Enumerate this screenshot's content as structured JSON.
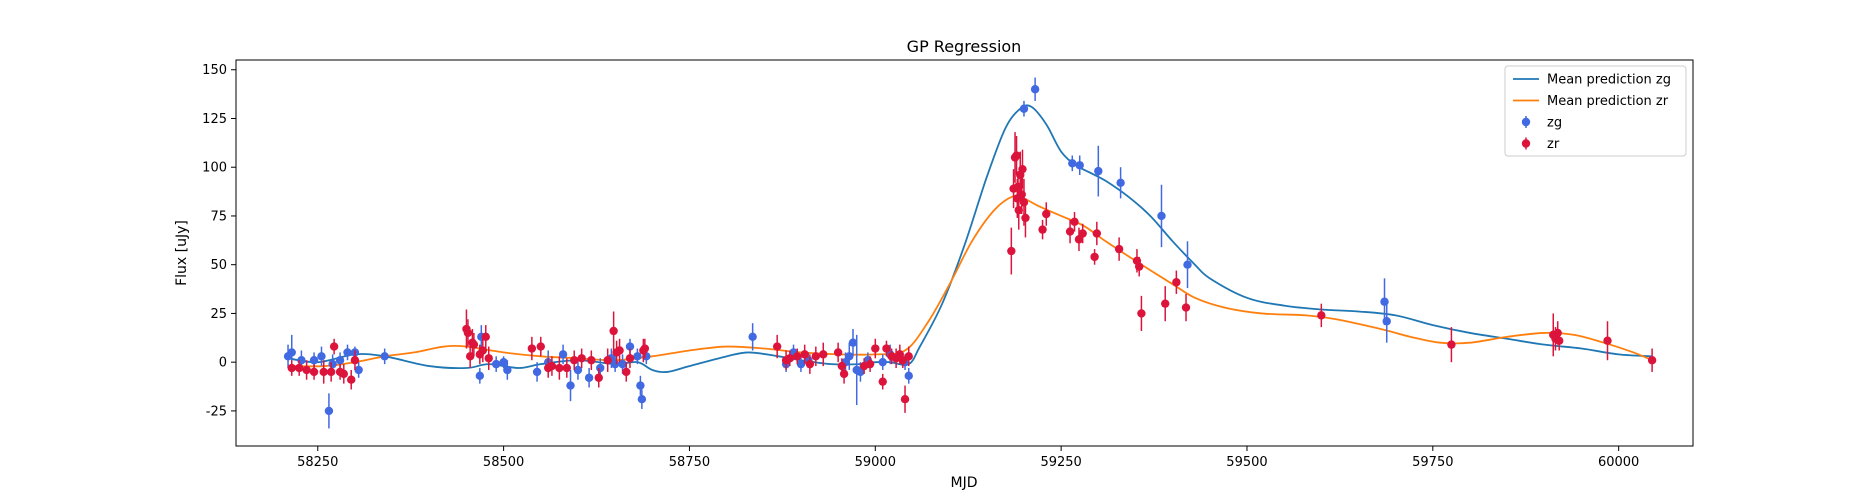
{
  "chart_data": {
    "type": "scatter",
    "title": "GP Regression",
    "xlabel": "MJD",
    "ylabel": "Flux [uJy]",
    "xlim": [
      58140,
      60100
    ],
    "ylim": [
      -43,
      155
    ],
    "xticks": [
      58250,
      58500,
      58750,
      59000,
      59250,
      59500,
      59750,
      60000
    ],
    "yticks": [
      -25,
      0,
      25,
      50,
      75,
      100,
      125,
      150
    ],
    "grid": false,
    "legend_position": "top-right",
    "legend": [
      {
        "label": "Mean prediction zg",
        "kind": "line",
        "series": "zg"
      },
      {
        "label": "Mean prediction zr",
        "kind": "line",
        "series": "zr"
      },
      {
        "label": "zg",
        "kind": "errorbar",
        "series": "zg"
      },
      {
        "label": "zr",
        "kind": "errorbar",
        "series": "zr"
      }
    ],
    "colors": {
      "zg_line": "#1f77b4",
      "zr_line": "#ff7f0e",
      "zg_points": "#4169e1",
      "zr_points": "#dc143c"
    },
    "series": [
      {
        "name": "Mean prediction zg",
        "type": "line",
        "points": [
          [
            58210,
            2
          ],
          [
            58250,
            0
          ],
          [
            58300,
            4
          ],
          [
            58340,
            3
          ],
          [
            58400,
            -2
          ],
          [
            58450,
            -3
          ],
          [
            58480,
            -1
          ],
          [
            58520,
            -3
          ],
          [
            58550,
            -1
          ],
          [
            58600,
            1
          ],
          [
            58650,
            -1
          ],
          [
            58680,
            0
          ],
          [
            58700,
            -4
          ],
          [
            58720,
            -5
          ],
          [
            58750,
            -2
          ],
          [
            58800,
            3
          ],
          [
            58830,
            5
          ],
          [
            58870,
            3
          ],
          [
            58900,
            1
          ],
          [
            58940,
            -1
          ],
          [
            58980,
            -1
          ],
          [
            59000,
            0
          ],
          [
            59020,
            0
          ],
          [
            59045,
            -1
          ],
          [
            59060,
            8
          ],
          [
            59090,
            30
          ],
          [
            59120,
            60
          ],
          [
            59150,
            95
          ],
          [
            59175,
            120
          ],
          [
            59195,
            130
          ],
          [
            59210,
            131
          ],
          [
            59230,
            122
          ],
          [
            59250,
            108
          ],
          [
            59270,
            101
          ],
          [
            59290,
            97
          ],
          [
            59310,
            93
          ],
          [
            59340,
            85
          ],
          [
            59370,
            75
          ],
          [
            59400,
            62
          ],
          [
            59430,
            50
          ],
          [
            59450,
            43
          ],
          [
            59500,
            33
          ],
          [
            59550,
            29
          ],
          [
            59600,
            27
          ],
          [
            59650,
            26
          ],
          [
            59700,
            24
          ],
          [
            59750,
            19
          ],
          [
            59800,
            15
          ],
          [
            59850,
            12
          ],
          [
            59900,
            9
          ],
          [
            59950,
            7
          ],
          [
            60000,
            4
          ],
          [
            60045,
            3
          ]
        ]
      },
      {
        "name": "Mean prediction zr",
        "type": "line",
        "points": [
          [
            58210,
            -2
          ],
          [
            58260,
            -2
          ],
          [
            58300,
            0
          ],
          [
            58340,
            3
          ],
          [
            58380,
            5
          ],
          [
            58420,
            8
          ],
          [
            58450,
            8
          ],
          [
            58500,
            5
          ],
          [
            58550,
            3
          ],
          [
            58600,
            2
          ],
          [
            58650,
            1
          ],
          [
            58700,
            3
          ],
          [
            58750,
            6
          ],
          [
            58800,
            8
          ],
          [
            58850,
            7
          ],
          [
            58900,
            5
          ],
          [
            58950,
            4
          ],
          [
            59000,
            4
          ],
          [
            59040,
            6
          ],
          [
            59070,
            20
          ],
          [
            59100,
            40
          ],
          [
            59130,
            62
          ],
          [
            59160,
            78
          ],
          [
            59185,
            85
          ],
          [
            59200,
            84
          ],
          [
            59220,
            80
          ],
          [
            59250,
            75
          ],
          [
            59280,
            70
          ],
          [
            59310,
            62
          ],
          [
            59350,
            52
          ],
          [
            59400,
            40
          ],
          [
            59430,
            33
          ],
          [
            59470,
            28
          ],
          [
            59520,
            25
          ],
          [
            59580,
            24
          ],
          [
            59620,
            22
          ],
          [
            59680,
            17
          ],
          [
            59720,
            13
          ],
          [
            59760,
            10
          ],
          [
            59800,
            10
          ],
          [
            59850,
            13
          ],
          [
            59900,
            15
          ],
          [
            59940,
            14
          ],
          [
            59980,
            10
          ],
          [
            60020,
            5
          ],
          [
            60045,
            1
          ]
        ]
      },
      {
        "name": "zg",
        "type": "errorbar",
        "points": [
          [
            58210,
            3,
            6
          ],
          [
            58215,
            5,
            9
          ],
          [
            58228,
            1,
            5
          ],
          [
            58245,
            1,
            4
          ],
          [
            58255,
            3,
            5
          ],
          [
            58265,
            -25,
            9
          ],
          [
            58270,
            -1,
            5
          ],
          [
            58280,
            1,
            4
          ],
          [
            58290,
            5,
            4
          ],
          [
            58300,
            5,
            3
          ],
          [
            58305,
            -4,
            4
          ],
          [
            58340,
            3,
            4
          ],
          [
            58470,
            13,
            6
          ],
          [
            58468,
            -7,
            4
          ],
          [
            58490,
            -1,
            4
          ],
          [
            58500,
            0,
            3
          ],
          [
            58505,
            -4,
            5
          ],
          [
            58545,
            -5,
            5
          ],
          [
            58560,
            0,
            6
          ],
          [
            58580,
            4,
            5
          ],
          [
            58590,
            -12,
            8
          ],
          [
            58600,
            -4,
            5
          ],
          [
            58615,
            -8,
            5
          ],
          [
            58630,
            -3,
            5
          ],
          [
            58645,
            2,
            5
          ],
          [
            58650,
            -1,
            4
          ],
          [
            58660,
            -1,
            5
          ],
          [
            58670,
            8,
            4
          ],
          [
            58680,
            3,
            4
          ],
          [
            58684,
            -12,
            5
          ],
          [
            58686,
            -19,
            5
          ],
          [
            58692,
            3,
            4
          ],
          [
            58835,
            13,
            7
          ],
          [
            58880,
            -1,
            4
          ],
          [
            58890,
            5,
            4
          ],
          [
            58900,
            -1,
            4
          ],
          [
            58910,
            1,
            4
          ],
          [
            58960,
            0,
            5
          ],
          [
            58965,
            3,
            7
          ],
          [
            58970,
            10,
            7
          ],
          [
            58975,
            -4,
            18
          ],
          [
            58980,
            -5,
            5
          ],
          [
            58990,
            1,
            4
          ],
          [
            59010,
            0,
            4
          ],
          [
            59020,
            4,
            5
          ],
          [
            59040,
            0,
            4
          ],
          [
            59045,
            -7,
            4
          ],
          [
            59200,
            130,
            4
          ],
          [
            59215,
            140,
            6
          ],
          [
            59265,
            102,
            4
          ],
          [
            59275,
            101,
            5
          ],
          [
            59300,
            98,
            13
          ],
          [
            59330,
            92,
            8
          ],
          [
            59385,
            75,
            16
          ],
          [
            59420,
            50,
            12
          ],
          [
            59685,
            31,
            12
          ],
          [
            59688,
            21,
            11
          ]
        ]
      },
      {
        "name": "zr",
        "type": "errorbar",
        "points": [
          [
            58215,
            -3,
            4
          ],
          [
            58225,
            -3,
            4
          ],
          [
            58235,
            -4,
            5
          ],
          [
            58245,
            -5,
            4
          ],
          [
            58258,
            -5,
            6
          ],
          [
            58268,
            -5,
            5
          ],
          [
            58272,
            8,
            4
          ],
          [
            58280,
            -5,
            4
          ],
          [
            58285,
            -6,
            5
          ],
          [
            58295,
            -9,
            5
          ],
          [
            58300,
            1,
            5
          ],
          [
            58450,
            17,
            10
          ],
          [
            58452,
            15,
            7
          ],
          [
            58455,
            3,
            6
          ],
          [
            58458,
            10,
            7
          ],
          [
            58460,
            9,
            6
          ],
          [
            58468,
            4,
            5
          ],
          [
            58472,
            6,
            6
          ],
          [
            58476,
            13,
            6
          ],
          [
            58480,
            2,
            6
          ],
          [
            58538,
            7,
            6
          ],
          [
            58550,
            8,
            5
          ],
          [
            58560,
            -3,
            5
          ],
          [
            58565,
            -2,
            5
          ],
          [
            58575,
            -3,
            6
          ],
          [
            58585,
            -3,
            5
          ],
          [
            58595,
            1,
            5
          ],
          [
            58605,
            2,
            5
          ],
          [
            58618,
            1,
            5
          ],
          [
            58628,
            -8,
            5
          ],
          [
            58640,
            1,
            6
          ],
          [
            58648,
            16,
            10
          ],
          [
            58652,
            5,
            6
          ],
          [
            58656,
            6,
            6
          ],
          [
            58665,
            -5,
            5
          ],
          [
            58670,
            2,
            5
          ],
          [
            58688,
            6,
            6
          ],
          [
            58690,
            7,
            5
          ],
          [
            58868,
            8,
            6
          ],
          [
            58880,
            1,
            5
          ],
          [
            58885,
            2,
            4
          ],
          [
            58895,
            3,
            4
          ],
          [
            58905,
            4,
            5
          ],
          [
            58912,
            -1,
            5
          ],
          [
            58920,
            3,
            5
          ],
          [
            58930,
            4,
            6
          ],
          [
            58950,
            5,
            5
          ],
          [
            58955,
            -2,
            4
          ],
          [
            58958,
            -6,
            5
          ],
          [
            58985,
            -2,
            4
          ],
          [
            58993,
            -1,
            4
          ],
          [
            59000,
            7,
            5
          ],
          [
            59010,
            -10,
            4
          ],
          [
            59015,
            7,
            4
          ],
          [
            59022,
            3,
            4
          ],
          [
            59028,
            2,
            5
          ],
          [
            59033,
            4,
            5
          ],
          [
            59037,
            1,
            4
          ],
          [
            59040,
            -19,
            7
          ],
          [
            59045,
            3,
            5
          ],
          [
            59183,
            57,
            12
          ],
          [
            59186,
            89,
            10
          ],
          [
            59188,
            105,
            13
          ],
          [
            59190,
            106,
            10
          ],
          [
            59191,
            84,
            10
          ],
          [
            59192,
            90,
            8
          ],
          [
            59193,
            78,
            10
          ],
          [
            59195,
            96,
            12
          ],
          [
            59197,
            86,
            10
          ],
          [
            59198,
            99,
            10
          ],
          [
            59200,
            82,
            12
          ],
          [
            59202,
            74,
            10
          ],
          [
            59225,
            68,
            5
          ],
          [
            59230,
            76,
            6
          ],
          [
            59262,
            67,
            6
          ],
          [
            59268,
            72,
            5
          ],
          [
            59274,
            63,
            6
          ],
          [
            59279,
            66,
            5
          ],
          [
            59295,
            54,
            4
          ],
          [
            59298,
            66,
            6
          ],
          [
            59328,
            58,
            6
          ],
          [
            59352,
            52,
            6
          ],
          [
            59355,
            49,
            5
          ],
          [
            59358,
            25,
            9
          ],
          [
            59390,
            30,
            9
          ],
          [
            59405,
            41,
            6
          ],
          [
            59418,
            28,
            7
          ],
          [
            59600,
            24,
            6
          ],
          [
            59775,
            9,
            9
          ],
          [
            59912,
            14,
            11
          ],
          [
            59915,
            12,
            6
          ],
          [
            59918,
            15,
            6
          ],
          [
            59920,
            11,
            5
          ],
          [
            59985,
            11,
            10
          ],
          [
            60045,
            1,
            6
          ]
        ]
      }
    ]
  }
}
